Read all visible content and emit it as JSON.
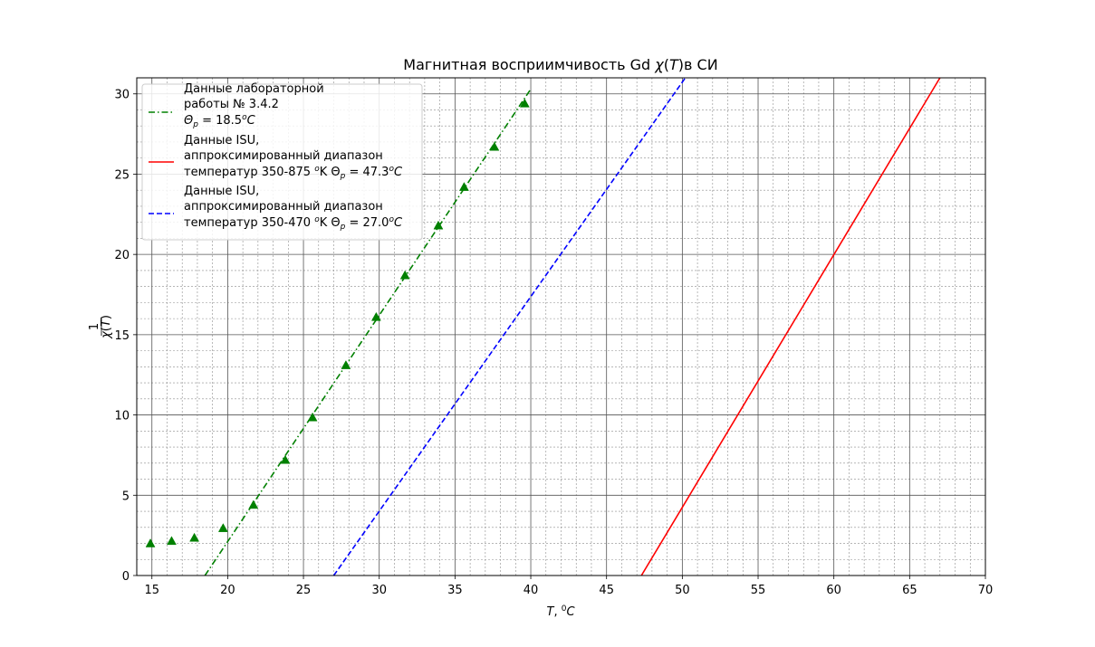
{
  "chart_data": {
    "type": "line",
    "title": "Магнитная восприимчивость Gd χ(T)в СИ",
    "xlabel": "T, ⁰C",
    "ylabel": "1/χ(T)",
    "xlim": [
      14,
      70
    ],
    "ylim": [
      0,
      31
    ],
    "x_ticks": [
      15,
      20,
      25,
      30,
      35,
      40,
      45,
      50,
      55,
      60,
      65,
      70
    ],
    "y_ticks": [
      0,
      5,
      10,
      15,
      20,
      25,
      30
    ],
    "grid": true,
    "minor_grid": true,
    "legend_position": "upper-left",
    "series": [
      {
        "name": "Данные лабораторной\n работы № 3.4.2\nΘp = 18.5°C",
        "legend_lines": [
          "Данные лабораторной",
          " работы № 3.4.2",
          "Θp = 18.5ᵒC"
        ],
        "kind": "fit_line",
        "line_style": "dashdot",
        "color": "#008000",
        "x": [
          18.5,
          40.0
        ],
        "y": [
          0.0,
          30.3
        ]
      },
      {
        "name": "Данные ISU, аппроксимированный диапазон температур 350-875 °K Θp = 47.3°C",
        "legend_lines": [
          "Данные ISU,",
          "аппроксимированный диапазон",
          "температур 350-875 ᵒK Θp = 47.3ᵒC"
        ],
        "kind": "fit_line",
        "line_style": "solid",
        "color": "#ff0000",
        "x": [
          47.3,
          67.0
        ],
        "y": [
          0.0,
          31.0
        ]
      },
      {
        "name": "Данные ISU, аппроксимированный диапазон температур 350-470 °K Θp = 27.0°C",
        "legend_lines": [
          "Данные ISU,",
          "аппроксимированный диапазон",
          "температур 350-470 ᵒK Θp = 27.0ᵒC"
        ],
        "kind": "fit_line",
        "line_style": "dashed",
        "color": "#0000ff",
        "x": [
          27.0,
          50.2
        ],
        "y": [
          0.0,
          31.0
        ]
      },
      {
        "name": "measured points",
        "kind": "markers",
        "marker": "triangle",
        "color": "#008000",
        "x": [
          14.9,
          16.3,
          17.8,
          19.7,
          21.7,
          23.8,
          25.6,
          27.8,
          29.8,
          31.7,
          33.9,
          35.6,
          37.6,
          39.6
        ],
        "y": [
          2.0,
          2.15,
          2.35,
          2.95,
          4.4,
          7.2,
          9.85,
          13.1,
          16.1,
          18.7,
          21.8,
          24.2,
          26.7,
          29.4
        ]
      }
    ]
  }
}
